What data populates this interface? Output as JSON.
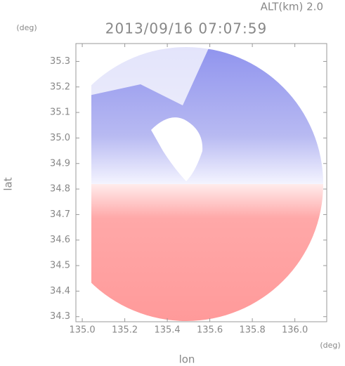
{
  "chart_data": {
    "type": "map",
    "title": "2013/09/16 07:07:59",
    "subtitle": "ALT(km) 2.0",
    "x_label": "lon",
    "y_label": "lat",
    "x_unit": "(deg)",
    "y_unit": "(deg)",
    "xlim": [
      134.97,
      136.15
    ],
    "ylim": [
      34.28,
      35.37
    ],
    "xticks": [
      {
        "value": 135.0,
        "label": "135.0"
      },
      135.2,
      135.4,
      135.6,
      135.8,
      {
        "value": 136.0,
        "label": "136.0"
      }
    ],
    "yticks": [
      34.3,
      34.4,
      34.5,
      34.6,
      34.7,
      34.8,
      34.9,
      {
        "value": 35.0,
        "label": "35.0"
      },
      35.1,
      35.2,
      35.3
    ]
  }
}
